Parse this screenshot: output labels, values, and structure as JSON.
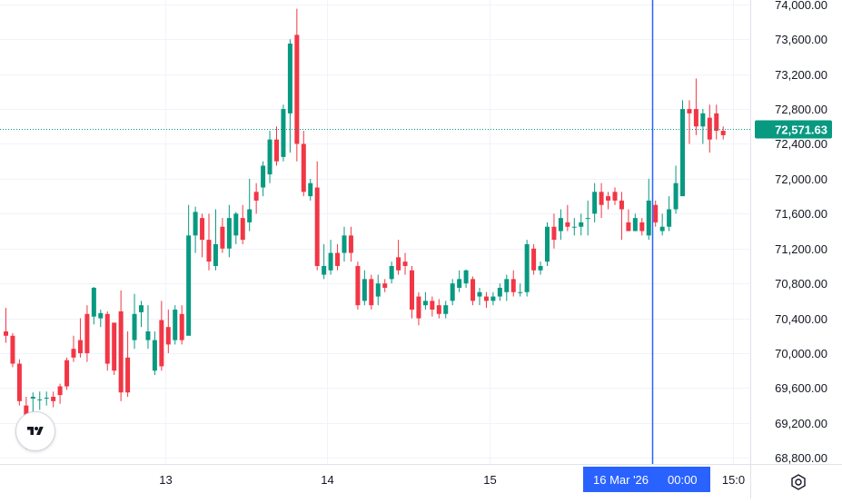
{
  "chart_data": {
    "type": "candlestick",
    "y_ticks": [
      "74,000.00",
      "73,600.00",
      "73,200.00",
      "72,800.00",
      "72,400.00",
      "72,000.00",
      "71,600.00",
      "71,200.00",
      "70,800.00",
      "70,400.00",
      "70,000.00",
      "69,600.00",
      "69,200.00",
      "68,800.00"
    ],
    "y_tick_values": [
      74000,
      73600,
      73200,
      72800,
      72400,
      72000,
      71600,
      71200,
      70800,
      70400,
      70000,
      69600,
      69200,
      68800
    ],
    "ylim": [
      68730,
      74050
    ],
    "x_ticks": [
      {
        "label": "13",
        "index": 23.5
      },
      {
        "label": "14",
        "index": 47.5
      },
      {
        "label": "15",
        "index": 71.5
      },
      {
        "label": "15:0",
        "index": 107.5
      }
    ],
    "crosshair": {
      "index": 95.5,
      "date_label": "16 Mar '26",
      "time_label": "00:00"
    },
    "last_price": {
      "label": "72,571.63",
      "value": 72571.63
    },
    "colors": {
      "up": "#089981",
      "down": "#f23645",
      "crosshair": "#2962ff",
      "grid": "#f0f3fa",
      "text": "#131722"
    },
    "candles": [
      [
        70250,
        70200,
        70520,
        70120
      ],
      [
        70200,
        69880,
        70230,
        69840
      ],
      [
        69880,
        69450,
        69930,
        69400
      ],
      [
        69400,
        68970,
        69500,
        68900
      ],
      [
        69480,
        69500,
        69550,
        69200
      ],
      [
        69470,
        69470,
        69560,
        69350
      ],
      [
        69480,
        69490,
        69560,
        69400
      ],
      [
        69500,
        69450,
        69560,
        69380
      ],
      [
        69620,
        69520,
        69650,
        69420
      ],
      [
        69920,
        69620,
        69950,
        69580
      ],
      [
        70050,
        69950,
        70200,
        69900
      ],
      [
        70150,
        70000,
        70400,
        69950
      ],
      [
        70450,
        70000,
        70550,
        69900
      ],
      [
        70420,
        70750,
        70760,
        70330
      ],
      [
        70400,
        70460,
        70500,
        70300
      ],
      [
        70450,
        69880,
        70480,
        69800
      ],
      [
        70350,
        69800,
        70350,
        69750
      ],
      [
        70480,
        69550,
        70720,
        69450
      ],
      [
        69950,
        69550,
        70250,
        69500
      ],
      [
        70150,
        70450,
        70680,
        70050
      ],
      [
        70470,
        70550,
        70600,
        70300
      ],
      [
        70150,
        70250,
        70550,
        70050
      ],
      [
        69800,
        70150,
        70250,
        69750
      ],
      [
        70380,
        69850,
        70600,
        69800
      ],
      [
        70300,
        70100,
        70500,
        70000
      ],
      [
        70150,
        70500,
        70550,
        70100
      ],
      [
        70450,
        70150,
        70550,
        70100
      ],
      [
        70200,
        71350,
        71700,
        70400
      ],
      [
        71350,
        71620,
        71680,
        71150
      ],
      [
        71550,
        71300,
        71600,
        71100
      ],
      [
        71300,
        71050,
        71600,
        70950
      ],
      [
        71000,
        71250,
        71650,
        70950
      ],
      [
        71450,
        71200,
        71550,
        71150
      ],
      [
        71200,
        71550,
        71700,
        71100
      ],
      [
        71350,
        71600,
        71620,
        71250
      ],
      [
        71550,
        71300,
        71700,
        71250
      ],
      [
        71500,
        71650,
        72000,
        71400
      ],
      [
        71850,
        71750,
        71950,
        71600
      ],
      [
        71900,
        72150,
        72200,
        71800
      ],
      [
        72050,
        72450,
        72550,
        71950
      ],
      [
        72450,
        72200,
        72600,
        72150
      ],
      [
        72250,
        72800,
        72850,
        72200
      ],
      [
        72750,
        73550,
        73600,
        72300
      ],
      [
        73650,
        72400,
        73950,
        72200
      ],
      [
        72400,
        71850,
        72550,
        71800
      ],
      [
        71800,
        71950,
        72000,
        71750
      ],
      [
        71900,
        71000,
        72200,
        70950
      ],
      [
        70900,
        71000,
        71250,
        70850
      ],
      [
        70950,
        71150,
        71300,
        70900
      ],
      [
        71150,
        71000,
        71250,
        70950
      ],
      [
        71150,
        71350,
        71450,
        71050
      ],
      [
        71350,
        71150,
        71450,
        71050
      ],
      [
        71000,
        70550,
        71050,
        70500
      ],
      [
        70600,
        70850,
        70950,
        70550
      ],
      [
        70850,
        70550,
        70900,
        70500
      ],
      [
        70650,
        70800,
        70900,
        70550
      ],
      [
        70800,
        70750,
        70850,
        70700
      ],
      [
        70850,
        71000,
        71050,
        70800
      ],
      [
        71100,
        70950,
        71300,
        70900
      ],
      [
        71050,
        71000,
        71150,
        70900
      ],
      [
        70950,
        70500,
        71000,
        70400
      ],
      [
        70650,
        70400,
        70700,
        70320
      ],
      [
        70550,
        70600,
        70700,
        70500
      ],
      [
        70600,
        70500,
        70650,
        70420
      ],
      [
        70550,
        70450,
        70620,
        70400
      ],
      [
        70450,
        70550,
        70600,
        70400
      ],
      [
        70600,
        70800,
        70850,
        70550
      ],
      [
        70750,
        70850,
        70950,
        70700
      ],
      [
        70800,
        70950,
        70960,
        70750
      ],
      [
        70850,
        70600,
        70880,
        70550
      ],
      [
        70650,
        70700,
        70750,
        70550
      ],
      [
        70650,
        70600,
        70700,
        70520
      ],
      [
        70600,
        70650,
        70700,
        70550
      ],
      [
        70650,
        70750,
        70800,
        70600
      ],
      [
        70700,
        70850,
        70900,
        70600
      ],
      [
        70850,
        70700,
        70950,
        70650
      ],
      [
        70700,
        70700,
        70800,
        70650
      ],
      [
        70700,
        71250,
        71300,
        70650
      ],
      [
        71200,
        70950,
        71250,
        70900
      ],
      [
        70950,
        71000,
        71050,
        70900
      ],
      [
        71050,
        71450,
        71500,
        71000
      ],
      [
        71450,
        71300,
        71600,
        71200
      ],
      [
        71400,
        71550,
        71650,
        71300
      ],
      [
        71500,
        71450,
        71700,
        71400
      ],
      [
        71450,
        71450,
        71550,
        71350
      ],
      [
        71450,
        71500,
        71600,
        71350
      ],
      [
        71550,
        71550,
        71750,
        71350
      ],
      [
        71600,
        71850,
        71950,
        71500
      ],
      [
        71850,
        71700,
        71950,
        71550
      ],
      [
        71800,
        71750,
        71850,
        71650
      ],
      [
        71850,
        71750,
        71900,
        71700
      ],
      [
        71750,
        71650,
        71850,
        71300
      ],
      [
        71500,
        71400,
        71650,
        71400
      ],
      [
        71400,
        71550,
        71600,
        71400
      ],
      [
        71500,
        71400,
        71550,
        71350
      ],
      [
        71350,
        71750,
        72000,
        71300
      ],
      [
        71700,
        71500,
        71750,
        71450
      ],
      [
        71400,
        71450,
        71600,
        71350
      ],
      [
        71450,
        71650,
        71800,
        71400
      ],
      [
        71650,
        71950,
        72150,
        71600
      ],
      [
        71800,
        72800,
        72900,
        71850
      ],
      [
        72800,
        72750,
        72900,
        72400
      ],
      [
        72800,
        72600,
        73150,
        72500
      ],
      [
        72600,
        72750,
        72800,
        72400
      ],
      [
        72700,
        72450,
        72850,
        72300
      ],
      [
        72750,
        72550,
        72850,
        72450
      ],
      [
        72550,
        72500,
        72600,
        72450
      ]
    ]
  }
}
